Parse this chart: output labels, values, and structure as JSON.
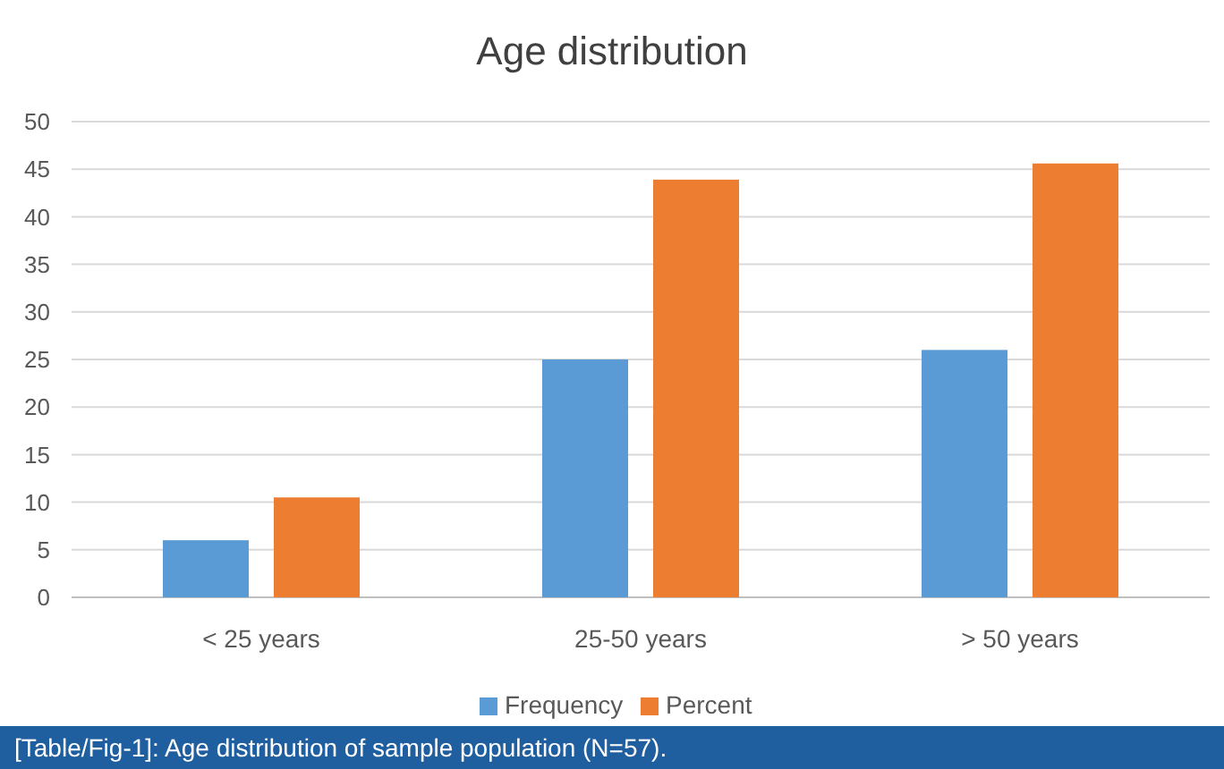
{
  "chart_data": {
    "type": "bar",
    "title": "Age distribution",
    "categories": [
      "< 25 years",
      "25-50 years",
      "> 50 years"
    ],
    "series": [
      {
        "name": "Frequency",
        "color": "#5b9bd5",
        "values": [
          6,
          25,
          26
        ]
      },
      {
        "name": "Percent",
        "color": "#ed7d31",
        "values": [
          10.5,
          43.9,
          45.6
        ]
      }
    ],
    "ylim": [
      0,
      50
    ],
    "yticks": [
      0,
      5,
      10,
      15,
      20,
      25,
      30,
      35,
      40,
      45,
      50
    ],
    "grid": "y",
    "legend": "bottom",
    "annotations": [
      "[Table/Fig-1]: Age distribution of sample population (N=57)."
    ]
  }
}
